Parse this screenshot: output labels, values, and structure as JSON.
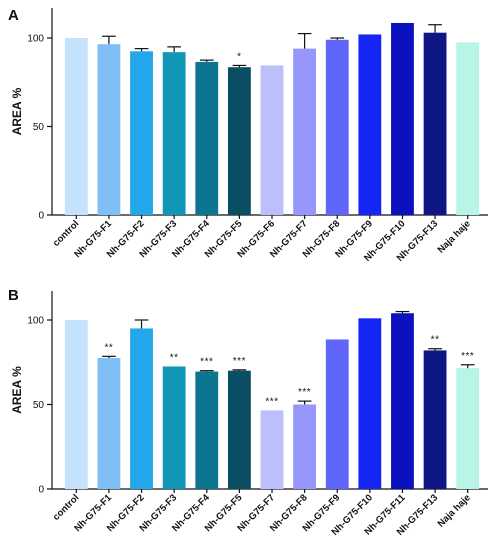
{
  "chart_data": [
    {
      "type": "bar",
      "panel_label": "A",
      "ylabel": "AREA %",
      "ylim": [
        0,
        115
      ],
      "yticks": [
        0,
        50,
        100
      ],
      "categories": [
        "control",
        "Nh-G75-F1",
        "Nh-G75-F2",
        "Nh-G75-F3",
        "Nh-G75-F4",
        "Nh-G75-F5",
        "Nh-G75-F6",
        "Nh-G75-F7",
        "Nh-G75-F8",
        "Nh-G75-F9",
        "Nh-G75-F10",
        "Nh-G75-F13",
        "Naja haje"
      ],
      "values": [
        100,
        96.5,
        92.5,
        92,
        86.5,
        83.5,
        84.5,
        94,
        99,
        102,
        108.5,
        103,
        97.5
      ],
      "errors": [
        0,
        4.5,
        1.5,
        3,
        1,
        1,
        0,
        8.5,
        1,
        0,
        0,
        4.5,
        0
      ],
      "annotations": [
        "",
        "",
        "",
        "",
        "",
        "*",
        "",
        "",
        "",
        "",
        "",
        "",
        ""
      ],
      "colors": [
        "#c4e2fb",
        "#7fbff5",
        "#24a6ea",
        "#1097b7",
        "#0c7590",
        "#0a4e63",
        "#bdbffd",
        "#9696fb",
        "#5f66f9",
        "#1525f3",
        "#0b11bd",
        "#0d1684",
        "#b7f5e6"
      ],
      "grid": false
    },
    {
      "type": "bar",
      "panel_label": "B",
      "ylabel": "AREA %",
      "ylim": [
        0,
        115
      ],
      "yticks": [
        0,
        50,
        100
      ],
      "categories": [
        "control",
        "Nh-G75-F1",
        "Nh-G75-F2",
        "Nh-G75-F3",
        "Nh-G75-F4",
        "Nh-G75-F5",
        "Nh-G75-F7",
        "Nh-G75-F8",
        "Nh-G75-F9",
        "Nh-G75-F10",
        "Nh-G75-F11",
        "Nh-G75-F13",
        "Naja haje"
      ],
      "values": [
        100,
        77.5,
        95,
        72.5,
        69.5,
        70,
        46.5,
        50,
        88.5,
        101,
        104,
        82,
        71.5
      ],
      "errors": [
        0,
        1,
        5,
        0,
        0.5,
        0.5,
        0,
        2,
        0,
        0,
        1,
        1,
        2
      ],
      "annotations": [
        "",
        "**",
        "",
        "**",
        "***",
        "***",
        "***",
        "***",
        "",
        "",
        "",
        "**",
        "***"
      ],
      "colors": [
        "#c4e2fb",
        "#7fbff5",
        "#24a6ea",
        "#1097b7",
        "#0c7590",
        "#0a4e63",
        "#bdbffd",
        "#9696fb",
        "#5f66f9",
        "#1525f3",
        "#0b11bd",
        "#0d1684",
        "#b7f5e6"
      ],
      "grid": false
    }
  ]
}
